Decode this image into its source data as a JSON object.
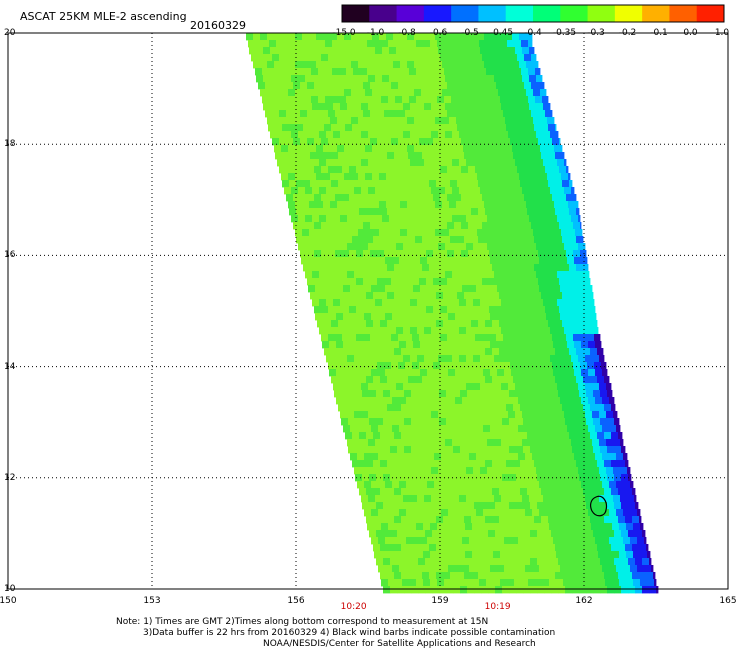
{
  "header": {
    "title": "ASCAT 25KM MLE-2 ascending",
    "date": "20160329"
  },
  "colorbar": {
    "labels": [
      "-15.0",
      "-1.0",
      "-0.8",
      "-0.6",
      "-0.5",
      "-0.45",
      "-0.4",
      "-0.35",
      "-0.3",
      "-0.2",
      "-0.1",
      "0.0",
      "1.0"
    ],
    "colors": [
      "#200020",
      "#48008c",
      "#5800d8",
      "#1818ff",
      "#0070ff",
      "#00c0ff",
      "#00ffd8",
      "#00ff78",
      "#30ff30",
      "#90ff10",
      "#f0ff00",
      "#ffb000",
      "#ff6000",
      "#ff2000"
    ]
  },
  "map": {
    "lon_range": [
      150,
      165
    ],
    "lat_range": [
      10,
      20
    ],
    "x_ticks": [
      "150",
      "153",
      "156",
      "159",
      "162",
      "165"
    ],
    "y_ticks": [
      "10",
      "12",
      "14",
      "16",
      "18",
      "20"
    ],
    "times": [
      {
        "label": "10:20",
        "lon": 157.2
      },
      {
        "label": "10:19",
        "lon": 160.2
      }
    ],
    "swath_colors": {
      "base": "#8cf52a",
      "mid": "#52ea3a",
      "edge": "#22e04a",
      "cyan": "#00f0e8",
      "lightblue": "#00c0ff",
      "blue": "#0a62ff",
      "deepblue": "#1818f0",
      "navy": "#3000a8"
    }
  },
  "notes": [
    "Note: 1) Times are GMT 2)Times along bottom correspond to measurement at 15N",
    "3)Data buffer is 22 hrs from 20160329 4) Black wind barbs indicate possible contamination",
    "NOAA/NESDIS/Center for Satellite Applications and Research"
  ]
}
